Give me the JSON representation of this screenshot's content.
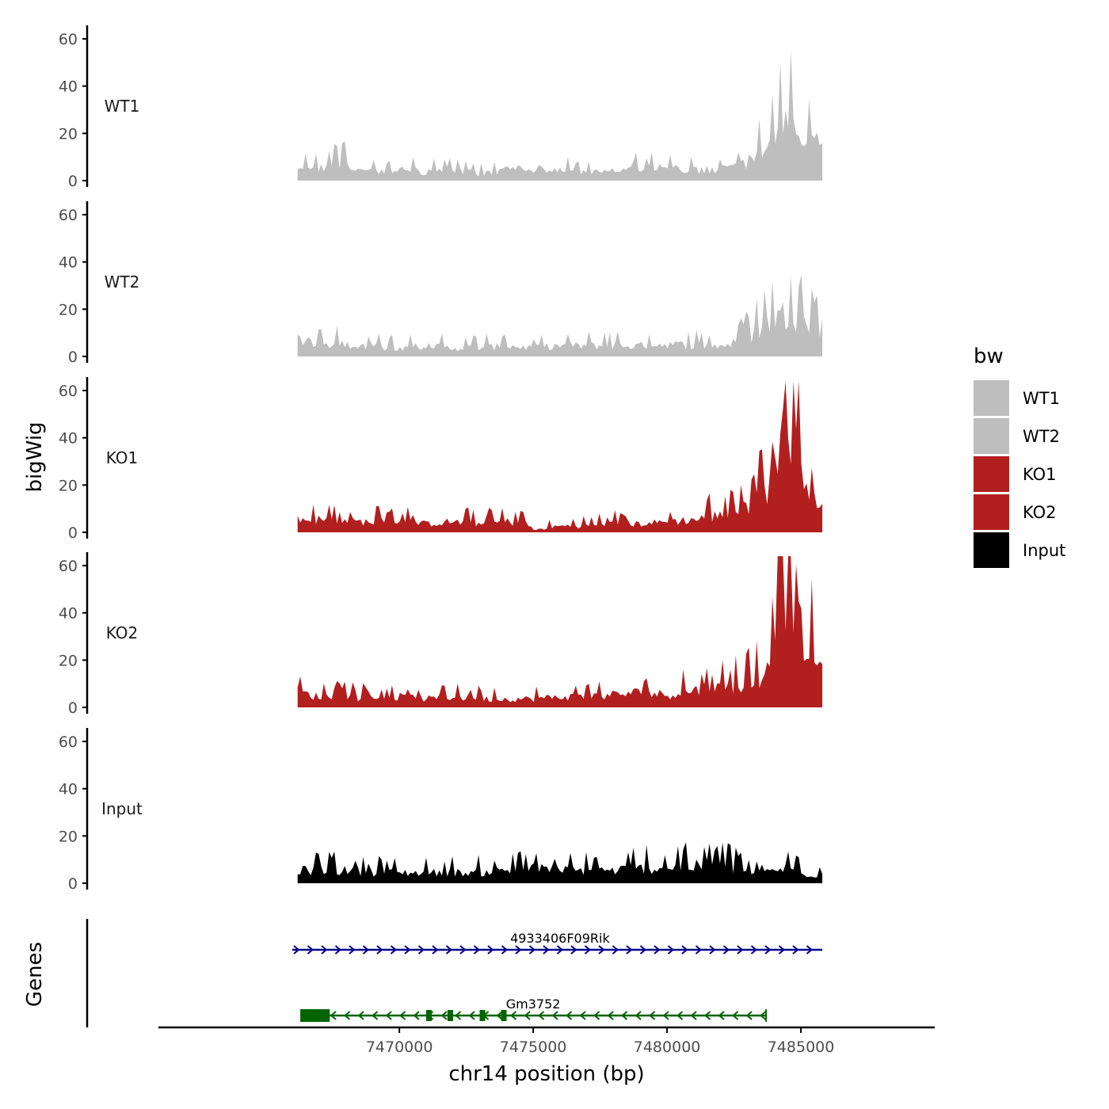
{
  "chart_data": {
    "type": "area",
    "description_axis": "chr14",
    "xlabel": "chr14 position (bp)",
    "ylabel": "bigWig",
    "genes_label": "Genes",
    "xlim": [
      7461000,
      7490000
    ],
    "data_x_range": [
      7466200,
      7485800
    ],
    "x_ticks": [
      7470000,
      7475000,
      7480000,
      7485000
    ],
    "x_tick_labels": [
      "7470000",
      "7475000",
      "7480000",
      "7485000"
    ],
    "ylim": [
      0,
      65
    ],
    "y_ticks": [
      0,
      20,
      40,
      60
    ],
    "y_tick_labels": [
      "0",
      "20",
      "40",
      "60"
    ],
    "legend": {
      "title": "bw",
      "entries": [
        {
          "name": "WT1",
          "color": "#bebebe"
        },
        {
          "name": "WT2",
          "color": "#bebebe"
        },
        {
          "name": "KO1",
          "color": "#b21f1f"
        },
        {
          "name": "KO2",
          "color": "#b21f1f"
        },
        {
          "name": "Input",
          "color": "#000000"
        }
      ]
    },
    "series": [
      {
        "name": "WT1",
        "color": "#bebebe",
        "anchors": [
          [
            7466200,
            5
          ],
          [
            7467000,
            6
          ],
          [
            7468000,
            7
          ],
          [
            7469000,
            4
          ],
          [
            7470000,
            5
          ],
          [
            7471000,
            4
          ],
          [
            7472000,
            5
          ],
          [
            7473000,
            3
          ],
          [
            7474000,
            5
          ],
          [
            7475000,
            6
          ],
          [
            7476000,
            5
          ],
          [
            7477000,
            4
          ],
          [
            7478000,
            5
          ],
          [
            7479000,
            5
          ],
          [
            7480000,
            6
          ],
          [
            7481000,
            5
          ],
          [
            7482000,
            5
          ],
          [
            7482800,
            7
          ],
          [
            7483300,
            12
          ],
          [
            7483700,
            15
          ],
          [
            7484000,
            20
          ],
          [
            7484400,
            24
          ],
          [
            7484700,
            28
          ],
          [
            7485000,
            24
          ],
          [
            7485300,
            19
          ],
          [
            7485800,
            16
          ]
        ]
      },
      {
        "name": "WT2",
        "color": "#bebebe",
        "anchors": [
          [
            7466200,
            8
          ],
          [
            7467000,
            5
          ],
          [
            7468000,
            6
          ],
          [
            7469000,
            5
          ],
          [
            7470000,
            4
          ],
          [
            7471000,
            5
          ],
          [
            7472000,
            4
          ],
          [
            7473000,
            4
          ],
          [
            7474000,
            5
          ],
          [
            7475000,
            4
          ],
          [
            7476000,
            5
          ],
          [
            7477000,
            5
          ],
          [
            7478000,
            5
          ],
          [
            7479000,
            5
          ],
          [
            7480000,
            6
          ],
          [
            7481000,
            5
          ],
          [
            7482000,
            5
          ],
          [
            7482800,
            7
          ],
          [
            7483300,
            11
          ],
          [
            7483700,
            14
          ],
          [
            7484000,
            18
          ],
          [
            7484400,
            20
          ],
          [
            7484700,
            20
          ],
          [
            7485000,
            17
          ],
          [
            7485300,
            14
          ],
          [
            7485800,
            10
          ]
        ]
      },
      {
        "name": "KO1",
        "color": "#b21f1f",
        "anchors": [
          [
            7466200,
            6
          ],
          [
            7467000,
            6
          ],
          [
            7468000,
            5
          ],
          [
            7469000,
            5
          ],
          [
            7470000,
            5
          ],
          [
            7471000,
            4
          ],
          [
            7472000,
            5
          ],
          [
            7473000,
            4
          ],
          [
            7474000,
            5
          ],
          [
            7474800,
            4
          ],
          [
            7475000,
            1
          ],
          [
            7476000,
            3
          ],
          [
            7477000,
            3
          ],
          [
            7478000,
            4
          ],
          [
            7479000,
            4
          ],
          [
            7480000,
            5
          ],
          [
            7481000,
            6
          ],
          [
            7482000,
            8
          ],
          [
            7482800,
            10
          ],
          [
            7483300,
            15
          ],
          [
            7483700,
            18
          ],
          [
            7484000,
            42
          ],
          [
            7484400,
            44
          ],
          [
            7484700,
            47
          ],
          [
            7485000,
            38
          ],
          [
            7485300,
            25
          ],
          [
            7485800,
            12
          ]
        ]
      },
      {
        "name": "KO2",
        "color": "#b21f1f",
        "anchors": [
          [
            7466200,
            7
          ],
          [
            7467000,
            5
          ],
          [
            7468000,
            5
          ],
          [
            7469000,
            4
          ],
          [
            7470000,
            5
          ],
          [
            7471000,
            4
          ],
          [
            7472000,
            5
          ],
          [
            7473000,
            4
          ],
          [
            7474000,
            4
          ],
          [
            7475000,
            4
          ],
          [
            7476000,
            5
          ],
          [
            7477000,
            5
          ],
          [
            7478000,
            6
          ],
          [
            7479000,
            7
          ],
          [
            7480000,
            6
          ],
          [
            7481000,
            8
          ],
          [
            7482000,
            9
          ],
          [
            7482800,
            10
          ],
          [
            7483300,
            12
          ],
          [
            7483700,
            18
          ],
          [
            7484000,
            46
          ],
          [
            7484400,
            56
          ],
          [
            7484700,
            58
          ],
          [
            7485000,
            35
          ],
          [
            7485300,
            24
          ],
          [
            7485800,
            18
          ]
        ]
      },
      {
        "name": "Input",
        "color": "#000000",
        "anchors": [
          [
            7466200,
            6
          ],
          [
            7467000,
            6
          ],
          [
            7468000,
            6
          ],
          [
            7469000,
            5
          ],
          [
            7470000,
            5
          ],
          [
            7471000,
            5
          ],
          [
            7472000,
            5
          ],
          [
            7473000,
            5
          ],
          [
            7474000,
            6
          ],
          [
            7475000,
            7
          ],
          [
            7476000,
            6
          ],
          [
            7477000,
            6
          ],
          [
            7478000,
            6
          ],
          [
            7479000,
            7
          ],
          [
            7480000,
            7
          ],
          [
            7481000,
            8
          ],
          [
            7482000,
            8
          ],
          [
            7482800,
            6
          ],
          [
            7483300,
            4
          ],
          [
            7483700,
            5
          ],
          [
            7484000,
            6
          ],
          [
            7484400,
            7
          ],
          [
            7484700,
            6
          ],
          [
            7485000,
            5
          ],
          [
            7485300,
            4
          ],
          [
            7485800,
            4
          ]
        ]
      }
    ],
    "genes": [
      {
        "name": "4933406F09Rik",
        "strand": "+",
        "color": "#00008b",
        "start": 7466000,
        "end": 7485800,
        "label_position": 7476000,
        "exons": []
      },
      {
        "name": "Gm3752",
        "strand": "-",
        "color": "#006400",
        "start": 7466300,
        "end": 7483700,
        "label_position": 7475000,
        "exons": [
          [
            7466300,
            7467400
          ],
          [
            7471000,
            7471200
          ],
          [
            7471800,
            7471950
          ],
          [
            7473000,
            7473150
          ],
          [
            7473800,
            7473950
          ]
        ]
      }
    ]
  }
}
